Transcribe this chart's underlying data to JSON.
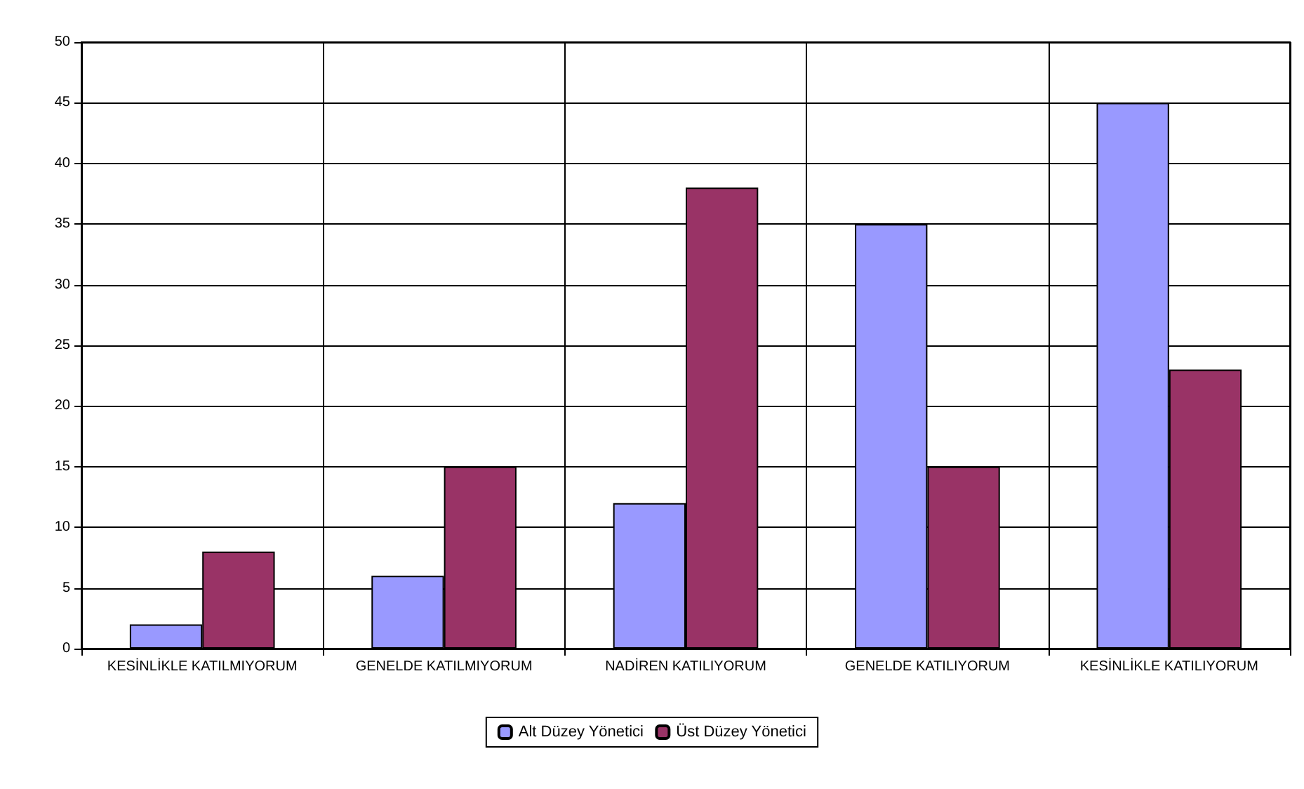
{
  "chart_data": {
    "type": "bar",
    "categories": [
      "KESİNLİKLE KATILMIYORUM",
      "GENELDE KATILMIYORUM",
      "NADİREN KATILIYORUM",
      "GENELDE KATILIYORUM",
      "KESİNLİKLE KATILIYORUM"
    ],
    "series": [
      {
        "name": "Alt Düzey Yönetici",
        "color": "#9999ff",
        "values": [
          2,
          6,
          12,
          35,
          45
        ]
      },
      {
        "name": "Üst Düzey Yönetici",
        "color": "#993366",
        "values": [
          8,
          15,
          38,
          15,
          23
        ]
      }
    ],
    "ylim": [
      0,
      50
    ],
    "yticks": [
      0,
      5,
      10,
      15,
      20,
      25,
      30,
      35,
      40,
      45,
      50
    ],
    "grid": true,
    "legend": "bottom"
  }
}
